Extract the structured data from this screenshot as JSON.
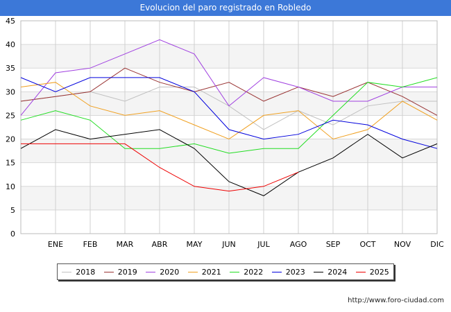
{
  "header": {
    "title": "Evolucion del paro registrado en Robledo"
  },
  "footer": {
    "url": "http://www.foro-ciudad.com"
  },
  "chart_data": {
    "type": "line",
    "title": "Evolucion del paro registrado en Robledo",
    "categories": [
      "",
      "ENE",
      "FEB",
      "MAR",
      "ABR",
      "MAY",
      "JUN",
      "JUL",
      "AGO",
      "SEP",
      "OCT",
      "NOV",
      "DIC"
    ],
    "ylim": [
      0,
      45
    ],
    "yticks": [
      0,
      5,
      10,
      15,
      20,
      25,
      30,
      35,
      40,
      45
    ],
    "grid": true,
    "legend_position": "bottom",
    "series": [
      {
        "name": "2018",
        "color": "#c0c0c0",
        "values": [
          28,
          29,
          30,
          28,
          31,
          31,
          27,
          22,
          26,
          23,
          27,
          28,
          28
        ]
      },
      {
        "name": "2019",
        "color": "#993333",
        "values": [
          28,
          29,
          30,
          35,
          32,
          30,
          32,
          28,
          31,
          29,
          32,
          29,
          25
        ]
      },
      {
        "name": "2020",
        "color": "#a040e0",
        "values": [
          25,
          34,
          35,
          38,
          41,
          38,
          27,
          33,
          31,
          28,
          28,
          31,
          31
        ]
      },
      {
        "name": "2021",
        "color": "#f0a020",
        "values": [
          31,
          32,
          27,
          25,
          26,
          23,
          20,
          25,
          26,
          20,
          22,
          28,
          24
        ]
      },
      {
        "name": "2022",
        "color": "#22dd22",
        "values": [
          24,
          26,
          24,
          18,
          18,
          19,
          17,
          18,
          18,
          25,
          32,
          31,
          33
        ]
      },
      {
        "name": "2023",
        "color": "#0000dd",
        "values": [
          33,
          30,
          33,
          33,
          33,
          30,
          22,
          20,
          21,
          24,
          23,
          20,
          18
        ]
      },
      {
        "name": "2024",
        "color": "#000000",
        "values": [
          18,
          22,
          20,
          21,
          22,
          18,
          11,
          8,
          13,
          16,
          21,
          16,
          19
        ]
      },
      {
        "name": "2025",
        "color": "#ee0000",
        "values": [
          19,
          19,
          19,
          19,
          14,
          10,
          9,
          10,
          13,
          null,
          null,
          null,
          null
        ]
      }
    ]
  }
}
